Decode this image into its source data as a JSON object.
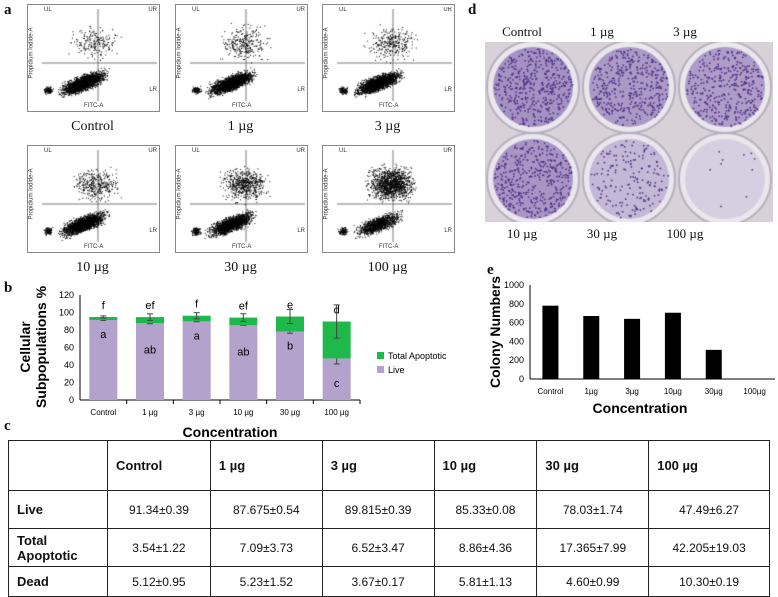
{
  "panels": {
    "a": "a",
    "b": "b",
    "c": "c",
    "d": "d",
    "e": "e"
  },
  "flow": {
    "quadrants": [
      "UL",
      "UR",
      "LR"
    ],
    "x_axis": "FITC-A",
    "y_axis": "Propidium Iodide-A",
    "plots": [
      {
        "label": "Control",
        "apop": 0.08
      },
      {
        "label": "1 µg",
        "apop": 0.12
      },
      {
        "label": "3 µg",
        "apop": 0.1
      },
      {
        "label": "10 µg",
        "apop": 0.14
      },
      {
        "label": "30 µg",
        "apop": 0.25
      },
      {
        "label": "100 µg",
        "apop": 0.5
      }
    ]
  },
  "photo": {
    "top_labels": [
      "Control",
      "1 µg",
      "3 µg"
    ],
    "bottom_labels": [
      "10 µg",
      "30 µg",
      "100 µg"
    ],
    "density": [
      0.9,
      0.8,
      0.75,
      0.85,
      0.35,
      0.02
    ]
  },
  "chart_data": [
    {
      "type": "bar",
      "stacked": true,
      "ylabel": "Cellular Subpopulations %",
      "xlabel": "Concentration",
      "ylim": [
        0,
        120
      ],
      "yticks": [
        0,
        20,
        40,
        60,
        80,
        100,
        120
      ],
      "categories": [
        "Control",
        "1 µg",
        "3 µg",
        "10 µg",
        "30 µg",
        "100 µg"
      ],
      "series": [
        {
          "name": "Live",
          "color": "#b3a2cc",
          "values": [
            91.34,
            87.675,
            89.815,
            85.33,
            78.03,
            47.49
          ],
          "errors": [
            0.39,
            0.54,
            0.39,
            0.08,
            1.74,
            6.27
          ]
        },
        {
          "name": "Total Apoptotic",
          "color": "#1fb84a",
          "values": [
            3.54,
            7.09,
            6.52,
            8.86,
            17.365,
            42.205
          ],
          "errors": [
            1.22,
            3.73,
            3.47,
            4.36,
            7.99,
            19.03
          ]
        }
      ],
      "top_letters": [
        "f",
        "ef",
        "f",
        "ef",
        "e",
        "d"
      ],
      "inner_letters": [
        "a",
        "ab",
        "a",
        "ab",
        "b",
        "c"
      ],
      "legend": "right"
    },
    {
      "type": "bar",
      "ylabel": "Colony Numbers",
      "xlabel": "Concentration",
      "ylim": [
        0,
        1000
      ],
      "yticks": [
        0,
        200,
        400,
        600,
        800,
        1000
      ],
      "categories": [
        "Control",
        "1µg",
        "3µg",
        "10µg",
        "30µg",
        "100µg"
      ],
      "values": [
        780,
        670,
        640,
        705,
        310,
        5
      ],
      "color": "#000000"
    }
  ],
  "table": {
    "headers": [
      "",
      "Control",
      "1 µg",
      "3 µg",
      "10 µg",
      "30 µg",
      "100 µg"
    ],
    "rows": [
      {
        "label": "Live",
        "values": [
          "91.34±0.39",
          "87.675±0.54",
          "89.815±0.39",
          "85.33±0.08",
          "78.03±1.74",
          "47.49±6.27"
        ]
      },
      {
        "label": "Total Apoptotic",
        "values": [
          "3.54±1.22",
          "7.09±3.73",
          "6.52±3.47",
          "8.86±4.36",
          "17.365±7.99",
          "42.205±19.03"
        ]
      },
      {
        "label": "Dead",
        "values": [
          "5.12±0.95",
          "5.23±1.52",
          "3.67±0.17",
          "5.81±1.13",
          "4.60±0.99",
          "10.30±0.19"
        ]
      }
    ]
  }
}
